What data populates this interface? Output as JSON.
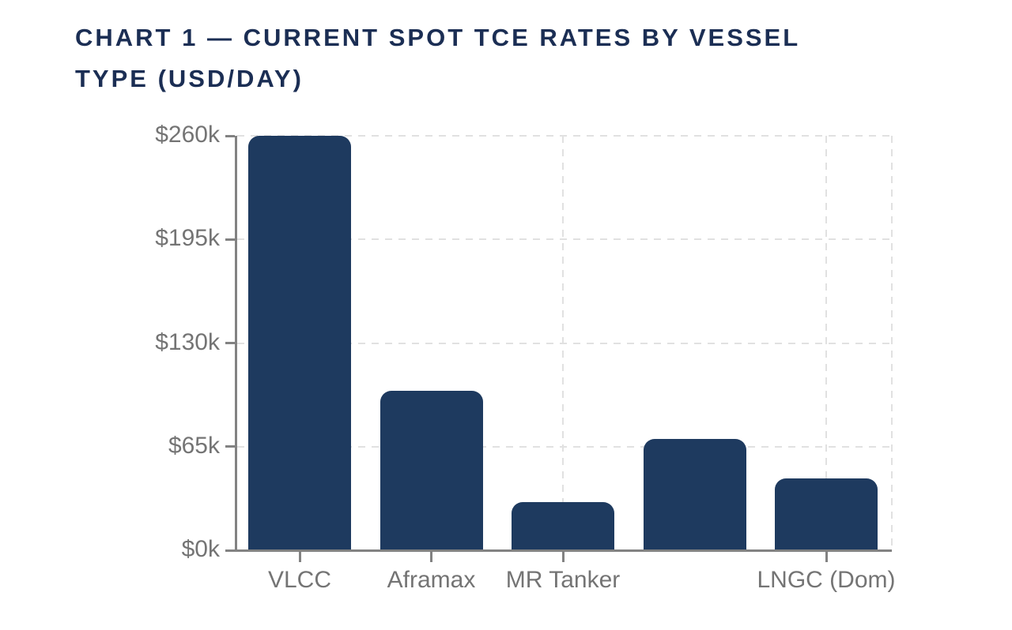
{
  "page": {
    "background": "#ffffff"
  },
  "chart": {
    "title": "CHART 1 — CURRENT SPOT TCE RATES BY VESSEL TYPE (USD/DAY)",
    "title_lines": [
      "CHART 1 — CURRENT SPOT TCE RATES BY VESSEL",
      "TYPE (USD/DAY)"
    ],
    "title_color": "#1b2e54"
  },
  "chart_data": {
    "type": "bar",
    "title": "CHART 1 — CURRENT SPOT TCE RATES BY VESSEL TYPE (USD/DAY)",
    "categories": [
      "VLCC",
      "Aframax",
      "MR Tanker",
      "",
      "LNGC (Dom)"
    ],
    "values": [
      260000,
      100000,
      30000,
      70000,
      45000
    ],
    "ylim": [
      0,
      260000
    ],
    "yticks": [
      {
        "value": 0,
        "label": "$0k"
      },
      {
        "value": 65000,
        "label": "$65k"
      },
      {
        "value": 130000,
        "label": "$130k"
      },
      {
        "value": 195000,
        "label": "$195k"
      },
      {
        "value": 260000,
        "label": "$260k"
      }
    ],
    "colors": {
      "bar": "#1e3a5f",
      "axis": "#828282",
      "tick_label": "#747474",
      "gridline": "#e1e1e1",
      "background": "#ffffff"
    },
    "layout": {
      "grid_horizontal_at": [
        65000,
        130000,
        195000,
        260000
      ],
      "grid_vertical_at_category_indices": [
        0,
        2,
        4
      ],
      "grid_vertical_at_right_edge": true,
      "legend": "none",
      "bar_corner_radius": 14
    }
  }
}
